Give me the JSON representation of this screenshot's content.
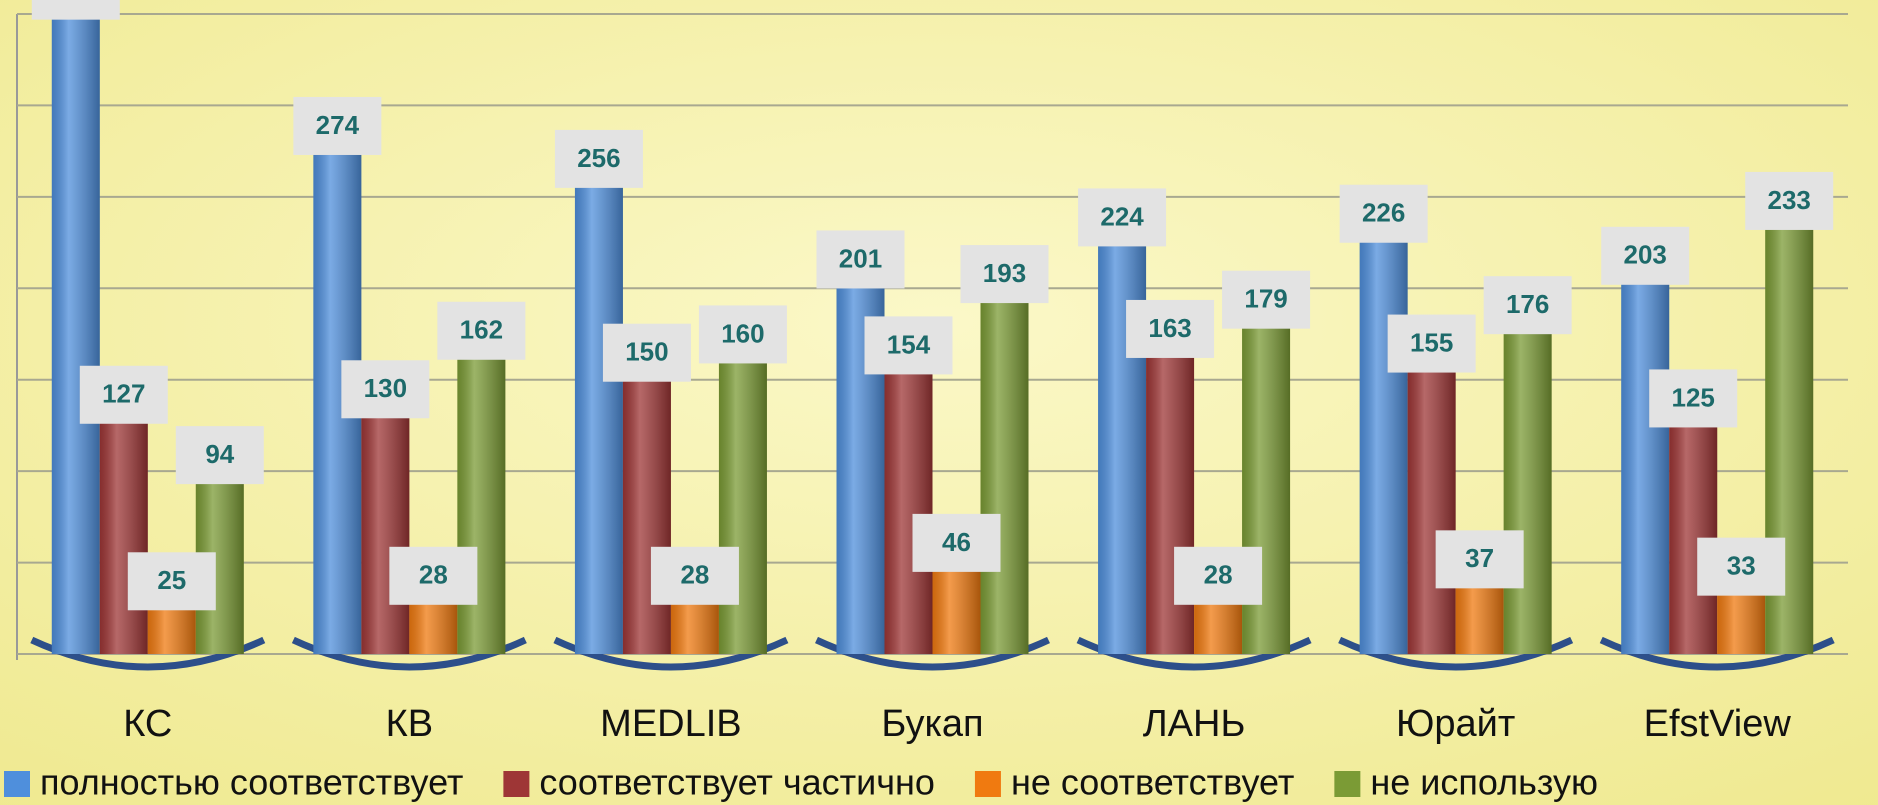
{
  "chart_data": {
    "type": "bar",
    "categories": [
      "КС",
      "КВ",
      "MEDLIB",
      "Букап",
      "ЛАНЬ",
      "Юрайт",
      "EfstView"
    ],
    "series": [
      {
        "name": "полностью соответствует",
        "color": "#4f8fdc",
        "values": [
          348,
          274,
          256,
          201,
          224,
          226,
          203
        ]
      },
      {
        "name": "соответствует частично",
        "color": "#9e3636",
        "values": [
          127,
          130,
          150,
          154,
          163,
          155,
          125
        ]
      },
      {
        "name": "не соответствует",
        "color": "#f07a10",
        "values": [
          25,
          28,
          28,
          46,
          28,
          37,
          33
        ]
      },
      {
        "name": "не использую",
        "color": "#7b9b35",
        "values": [
          94,
          162,
          160,
          193,
          179,
          176,
          233
        ]
      }
    ],
    "ylim": [
      0,
      350
    ],
    "yticks": [
      0,
      50,
      100,
      150,
      200,
      250,
      300,
      350
    ],
    "grid": true,
    "legend": "bottom"
  }
}
